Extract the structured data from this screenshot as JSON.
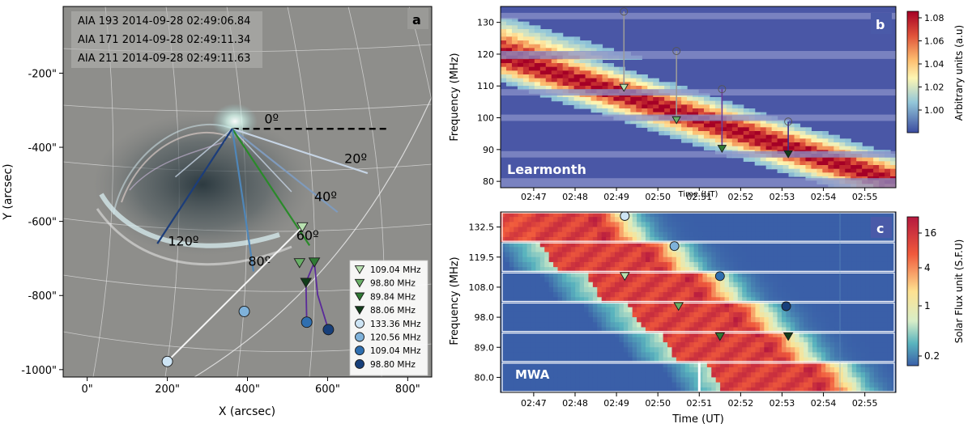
{
  "colors": {
    "aia193": "#0a7a0a",
    "aia171": "#d01818",
    "aia211": "#1010d0",
    "ray0": "#000000",
    "ray20": "#c6d4e4",
    "ray40": "#7f9bbd",
    "ray60": "#2a8a2a",
    "ray80": "#4f86b8",
    "ray120": "#1c3d7a",
    "tri109": "#b8e0b0",
    "tri98": "#69b067",
    "tri89": "#2f7a34",
    "tri88": "#113d1a",
    "cir133": "#cde4f4",
    "cir120": "#7fb2da",
    "cir109": "#2f6fb0",
    "cir98": "#173f7a"
  },
  "chart_data": [
    {
      "panel": "a",
      "type": "scatter",
      "title": "",
      "xlabel": "X (arcsec)",
      "ylabel": "Y (arcsec)",
      "xlim": [
        -60,
        860
      ],
      "ylim": [
        -1020,
        -20
      ],
      "xticks": [
        {
          "v": 0,
          "label": "0\""
        },
        {
          "v": 200,
          "label": "200\""
        },
        {
          "v": 400,
          "label": "400\""
        },
        {
          "v": 600,
          "label": "600\""
        },
        {
          "v": 800,
          "label": "800\""
        }
      ],
      "yticks": [
        {
          "v": -200,
          "label": "-200\""
        },
        {
          "v": -400,
          "label": "-400\""
        },
        {
          "v": -600,
          "label": "-600\""
        },
        {
          "v": -800,
          "label": "-800\""
        },
        {
          "v": -1000,
          "label": "-1000\""
        }
      ],
      "annotations": [
        "AIA 193 2014-09-28 02:49:06.84",
        "AIA 171 2014-09-28 02:49:11.34",
        "AIA 211 2014-09-28 02:49:11.63"
      ],
      "origin": [
        362,
        -350
      ],
      "rays": [
        {
          "label": "0º",
          "end": [
            750,
            -350
          ],
          "label_at": [
            460,
            -335
          ],
          "color_key": "ray0",
          "dashed": true
        },
        {
          "label": "20º",
          "end": [
            700,
            -470
          ],
          "label_at": [
            670,
            -442
          ],
          "color_key": "ray20"
        },
        {
          "label": "40º",
          "end": [
            625,
            -575
          ],
          "label_at": [
            595,
            -545
          ],
          "color_key": "ray40"
        },
        {
          "label": "60º",
          "end": [
            555,
            -665
          ],
          "label_at": [
            550,
            -650
          ],
          "color_key": "ray60"
        },
        {
          "label": "80º",
          "end": [
            415,
            -735
          ],
          "label_at": [
            430,
            -720
          ],
          "color_key": "ray80"
        },
        {
          "label": "120º",
          "end": [
            175,
            -660
          ],
          "label_at": [
            240,
            -665
          ],
          "color_key": "ray120"
        }
      ],
      "extra_rays": [
        {
          "end": [
            510,
            -520
          ],
          "color_key": "ray20"
        },
        {
          "end": [
            220,
            -480
          ],
          "color_key": "ray20"
        }
      ],
      "series": [
        {
          "name": "109.04 MHz",
          "marker": "triangle",
          "color_key": "tri109",
          "x": 537,
          "y": -615
        },
        {
          "name": "98.80 MHz",
          "marker": "triangle",
          "color_key": "tri98",
          "x": 530,
          "y": -712
        },
        {
          "name": "89.84 MHz",
          "marker": "triangle",
          "color_key": "tri89",
          "x": 567,
          "y": -710
        },
        {
          "name": "88.06 MHz",
          "marker": "triangle",
          "color_key": "tri88",
          "x": 546,
          "y": -765
        },
        {
          "name": "133.36 MHz",
          "marker": "circle",
          "color_key": "cir133",
          "x": 200,
          "y": -978
        },
        {
          "name": "120.56 MHz",
          "marker": "circle",
          "color_key": "cir120",
          "x": 392,
          "y": -843
        },
        {
          "name": "109.04 MHz",
          "marker": "circle",
          "color_key": "cir109",
          "x": 548,
          "y": -872
        },
        {
          "name": "98.80 MHz",
          "marker": "circle",
          "color_key": "cir98",
          "x": 602,
          "y": -892
        }
      ]
    },
    {
      "panel": "b",
      "type": "heatmap",
      "title": "",
      "xlabel": "Time (UT)",
      "ylabel": "Frequency (MHz)",
      "station": "Learmonth",
      "xlim": [
        46.2,
        55.75
      ],
      "ylim": [
        78,
        135
      ],
      "xticks": [
        {
          "v": 47,
          "label": "02:47"
        },
        {
          "v": 48,
          "label": "02:48"
        },
        {
          "v": 49,
          "label": "02:49"
        },
        {
          "v": 50,
          "label": "02:50"
        },
        {
          "v": 51,
          "label": "02:51"
        },
        {
          "v": 52,
          "label": "02:52"
        },
        {
          "v": 53,
          "label": "02:53"
        },
        {
          "v": 54,
          "label": "02:54"
        },
        {
          "v": 55,
          "label": "02:55"
        }
      ],
      "yticks": [
        80,
        90,
        100,
        110,
        120,
        130
      ],
      "colorbar": {
        "label": "Arbitrary units (a.u)",
        "ticks": [
          "1.08",
          "1.06",
          "1.04",
          "1.02",
          "1.00"
        ],
        "range": [
          0.985,
          1.09
        ]
      },
      "arrows": [
        {
          "x": 49.18,
          "y_from": 133.4,
          "y_to": 109.0,
          "head": "triangle",
          "color_key": "tri109"
        },
        {
          "x": 50.45,
          "y_from": 121.0,
          "y_to": 98.8,
          "head": "triangle",
          "color_key": "tri98"
        },
        {
          "x": 51.55,
          "y_from": 109.0,
          "y_to": 89.8,
          "head": "triangle",
          "color_key": "tri89"
        },
        {
          "x": 53.15,
          "y_from": 98.8,
          "y_to": 88.1,
          "head": "triangle",
          "color_key": "tri88"
        }
      ]
    },
    {
      "panel": "c",
      "type": "heatmap",
      "title": "",
      "xlabel": "Time (UT)",
      "ylabel": "Frequency (MHz)",
      "station": "MWA",
      "xlim": [
        46.2,
        55.75
      ],
      "xticks": [
        {
          "v": 47,
          "label": "02:47"
        },
        {
          "v": 48,
          "label": "02:48"
        },
        {
          "v": 49,
          "label": "02:49"
        },
        {
          "v": 50,
          "label": "02:50"
        },
        {
          "v": 51,
          "label": "02:51"
        },
        {
          "v": 52,
          "label": "02:52"
        },
        {
          "v": 53,
          "label": "02:53"
        },
        {
          "v": 54,
          "label": "02:54"
        },
        {
          "v": 55,
          "label": "02:55"
        }
      ],
      "bands": [
        "132.5",
        "119.5",
        "108.0",
        "98.0",
        "89.0",
        "80.0"
      ],
      "band_peak_times": [
        48.0,
        49.2,
        50.3,
        51.3,
        52.1,
        53.2
      ],
      "colorbar": {
        "label": "Solar Flux  unit  (S.F.U)",
        "ticks": [
          "16",
          "4",
          "1",
          "0.2"
        ],
        "range": [
          0.05,
          25
        ]
      },
      "markers": [
        {
          "band": 0,
          "t": 49.2,
          "marker": "circle",
          "color_key": "cir133"
        },
        {
          "band": 1,
          "t": 50.4,
          "marker": "circle",
          "color_key": "cir120"
        },
        {
          "band": 2,
          "t": 49.2,
          "marker": "triangle",
          "color_key": "tri109"
        },
        {
          "band": 2,
          "t": 51.5,
          "marker": "circle",
          "color_key": "cir109"
        },
        {
          "band": 3,
          "t": 50.5,
          "marker": "triangle",
          "color_key": "tri98"
        },
        {
          "band": 3,
          "t": 53.1,
          "marker": "circle",
          "color_key": "cir98"
        },
        {
          "band": 4,
          "t": 51.5,
          "marker": "triangle",
          "color_key": "tri89"
        },
        {
          "band": 4,
          "t": 53.15,
          "marker": "triangle",
          "color_key": "tri88"
        }
      ]
    }
  ]
}
